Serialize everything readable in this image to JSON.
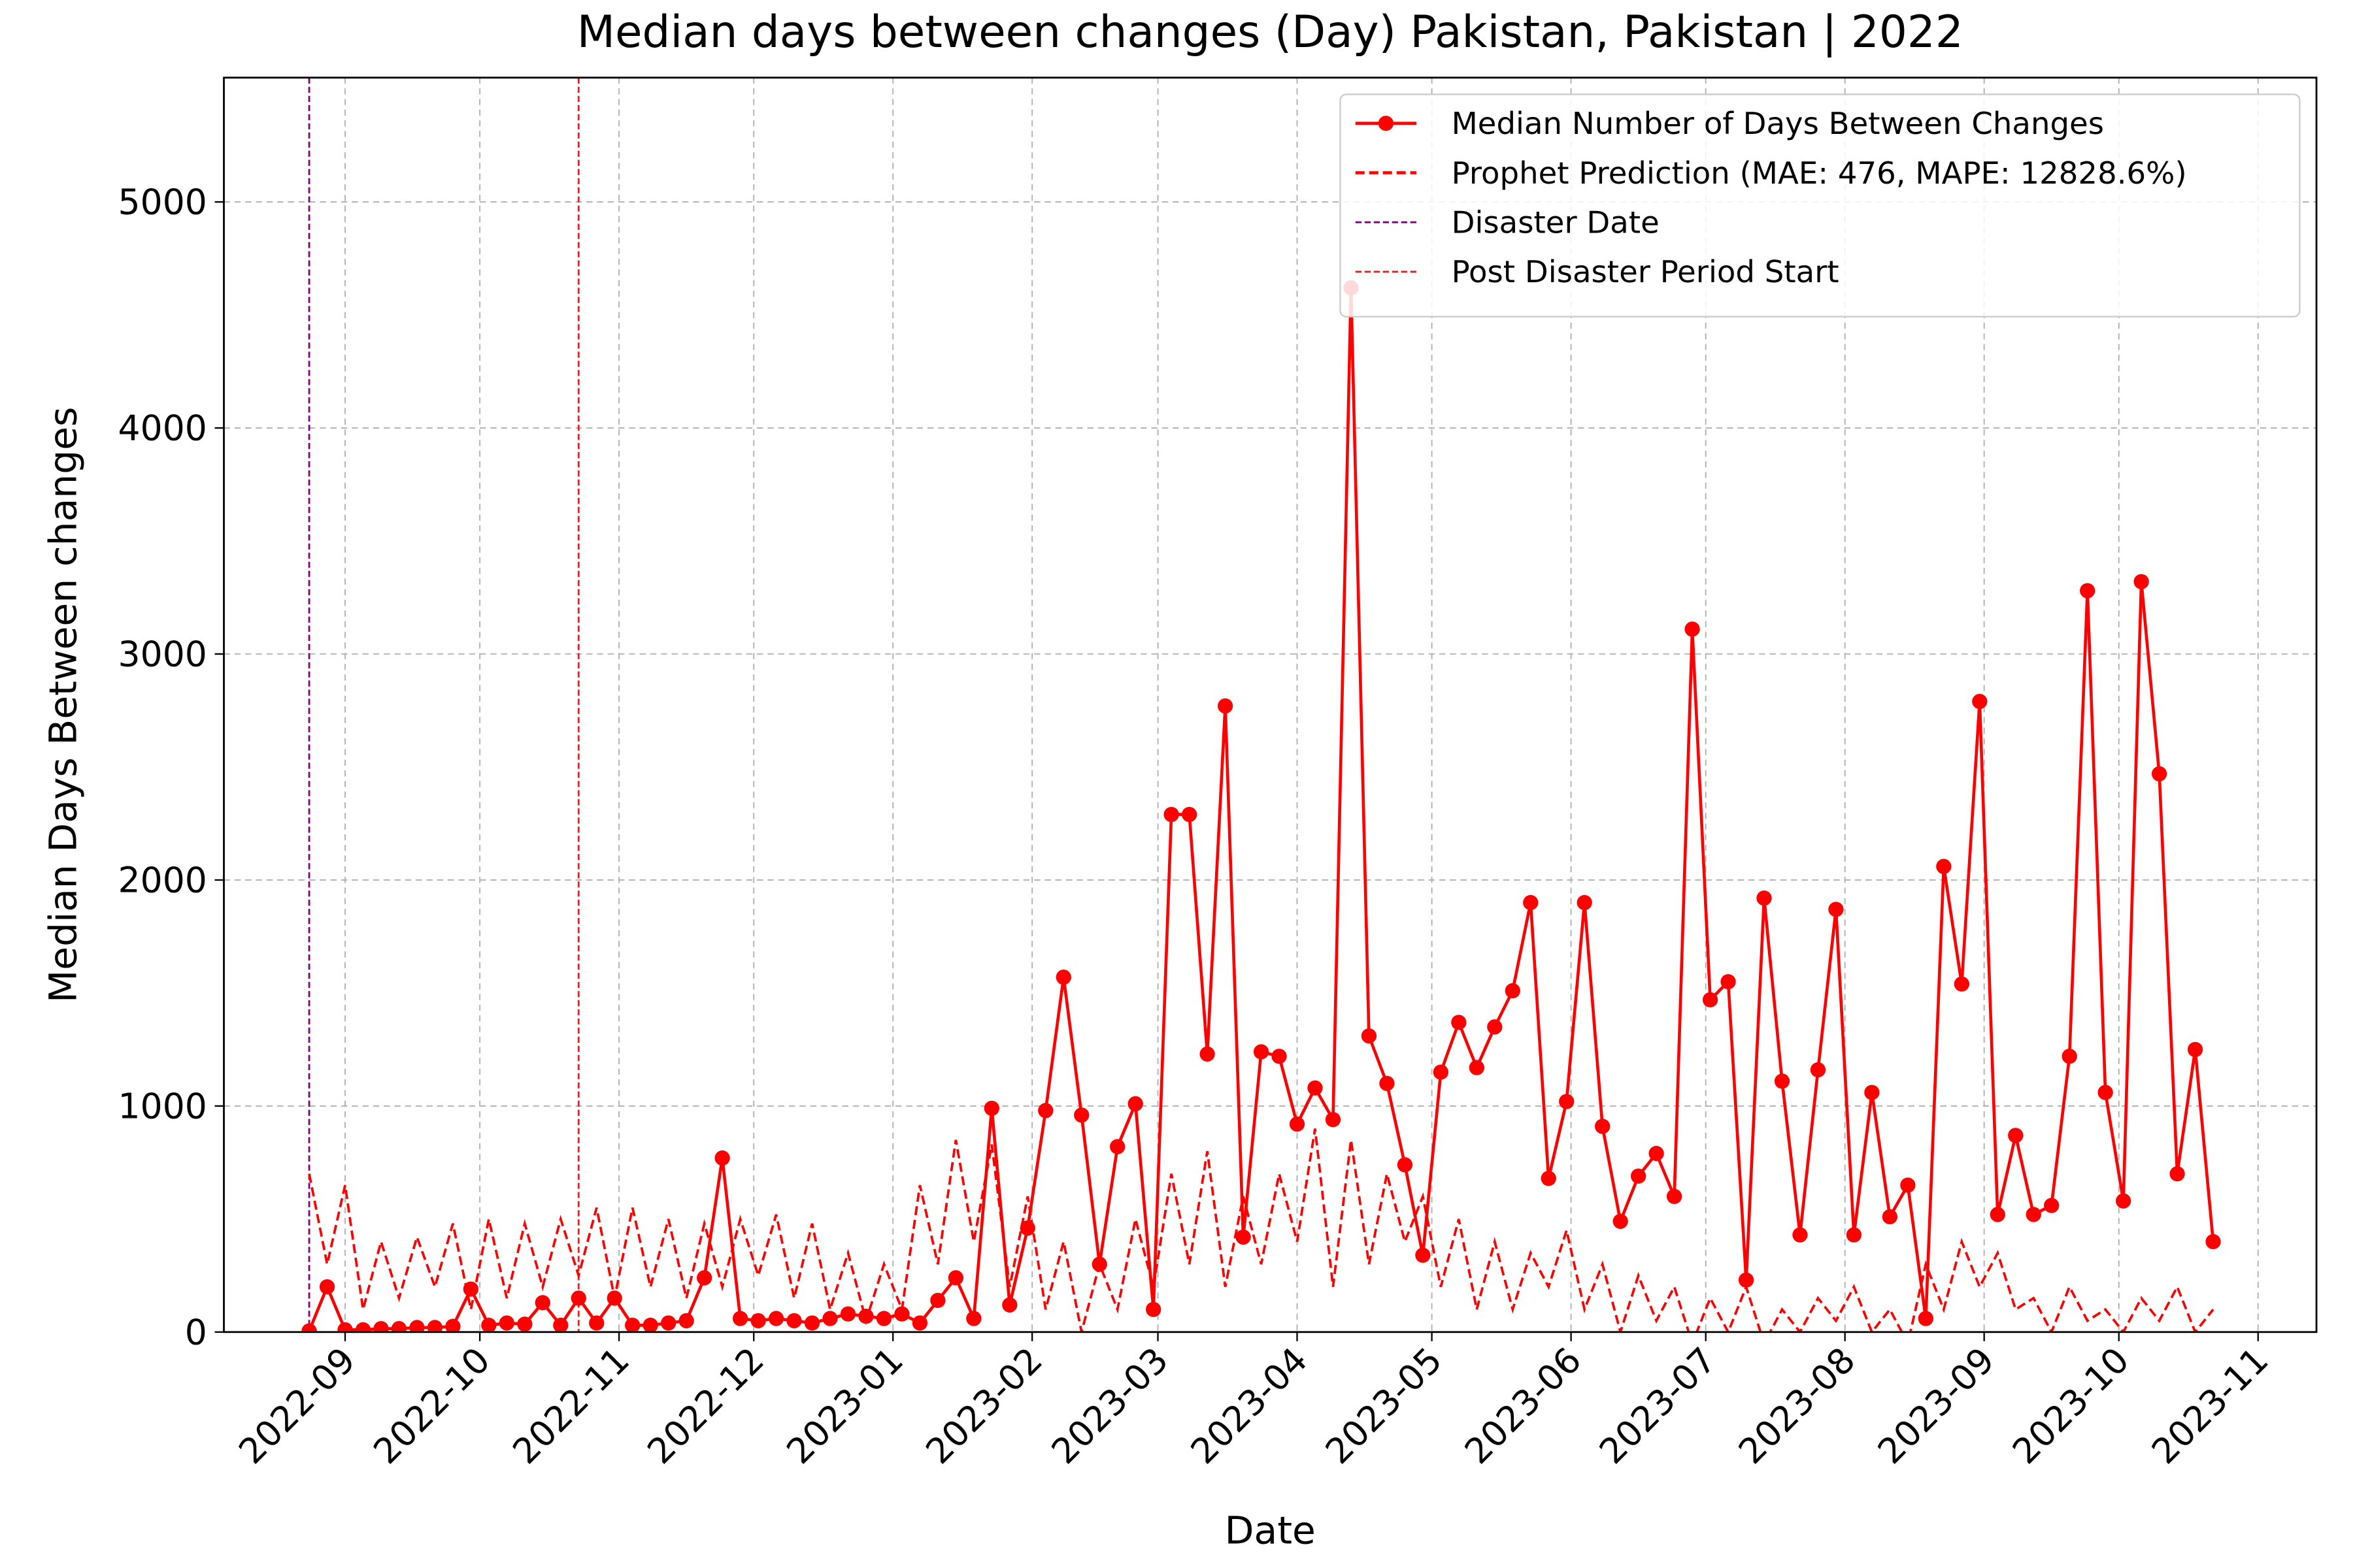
{
  "chart_data": {
    "type": "line",
    "title": "Median days between changes (Day) Pakistan, Pakistan | 2022",
    "xlabel": "Date",
    "ylabel": "Median Days Between changes",
    "x": [
      "2022-08-24",
      "2022-08-28",
      "2022-09-01",
      "2022-09-05",
      "2022-09-09",
      "2022-09-13",
      "2022-09-17",
      "2022-09-21",
      "2022-09-25",
      "2022-09-29",
      "2022-10-03",
      "2022-10-07",
      "2022-10-11",
      "2022-10-15",
      "2022-10-19",
      "2022-10-23",
      "2022-10-27",
      "2022-10-31",
      "2022-11-04",
      "2022-11-08",
      "2022-11-12",
      "2022-11-16",
      "2022-11-20",
      "2022-11-24",
      "2022-11-28",
      "2022-12-02",
      "2022-12-06",
      "2022-12-10",
      "2022-12-14",
      "2022-12-18",
      "2022-12-22",
      "2022-12-26",
      "2022-12-30",
      "2023-01-03",
      "2023-01-07",
      "2023-01-11",
      "2023-01-15",
      "2023-01-19",
      "2023-01-23",
      "2023-01-27",
      "2023-01-31",
      "2023-02-04",
      "2023-02-08",
      "2023-02-12",
      "2023-02-16",
      "2023-02-20",
      "2023-02-24",
      "2023-02-28",
      "2023-03-04",
      "2023-03-08",
      "2023-03-12",
      "2023-03-16",
      "2023-03-20",
      "2023-03-24",
      "2023-03-28",
      "2023-04-01",
      "2023-04-05",
      "2023-04-09",
      "2023-04-13",
      "2023-04-17",
      "2023-04-21",
      "2023-04-25",
      "2023-04-29",
      "2023-05-03",
      "2023-05-07",
      "2023-05-11",
      "2023-05-15",
      "2023-05-19",
      "2023-05-23",
      "2023-05-27",
      "2023-05-31",
      "2023-06-04",
      "2023-06-08",
      "2023-06-12",
      "2023-06-16",
      "2023-06-20",
      "2023-06-24",
      "2023-06-28",
      "2023-07-02",
      "2023-07-06",
      "2023-07-10",
      "2023-07-14",
      "2023-07-18",
      "2023-07-22",
      "2023-07-26",
      "2023-07-30",
      "2023-08-03",
      "2023-08-07",
      "2023-08-11",
      "2023-08-15",
      "2023-08-19",
      "2023-08-23",
      "2023-08-27",
      "2023-08-31",
      "2023-09-04",
      "2023-09-08",
      "2023-09-12",
      "2023-09-16",
      "2023-09-20",
      "2023-09-24",
      "2023-09-28",
      "2023-10-02",
      "2023-10-06",
      "2023-10-10",
      "2023-10-14",
      "2023-10-18",
      "2023-10-22"
    ],
    "series": [
      {
        "name": "Median Number of Days Between Changes",
        "color": "#ff0000",
        "style": "solid",
        "marker": true,
        "values": [
          5,
          200,
          10,
          10,
          15,
          15,
          20,
          20,
          25,
          190,
          30,
          40,
          35,
          130,
          30,
          150,
          40,
          150,
          30,
          30,
          40,
          50,
          240,
          770,
          60,
          50,
          60,
          50,
          40,
          60,
          80,
          70,
          60,
          80,
          40,
          140,
          240,
          60,
          990,
          120,
          460,
          980,
          1570,
          960,
          300,
          820,
          1010,
          100,
          2290,
          2290,
          1230,
          2770,
          420,
          1240,
          1220,
          920,
          1080,
          940,
          4620,
          1310,
          1100,
          740,
          340,
          1150,
          1370,
          1170,
          1350,
          1510,
          1900,
          680,
          1020,
          1900,
          910,
          490,
          690,
          790,
          600,
          3110,
          1470,
          1550,
          230,
          1920,
          1110,
          430,
          1160,
          1870,
          430,
          1060,
          510,
          650,
          60,
          2060,
          1540,
          2790,
          520,
          870,
          520,
          560,
          1220,
          3280,
          1060,
          580,
          3320,
          2470,
          700,
          1250,
          400
        ]
      },
      {
        "name": "Prophet Prediction (MAE: 476, MAPE: 12828.6%)",
        "color": "#ff0000",
        "style": "dashed",
        "marker": false,
        "values": [
          700,
          300,
          650,
          100,
          400,
          150,
          420,
          200,
          480,
          100,
          500,
          150,
          480,
          200,
          500,
          250,
          550,
          150,
          550,
          200,
          500,
          150,
          480,
          200,
          500,
          250,
          520,
          150,
          480,
          100,
          350,
          50,
          300,
          100,
          650,
          300,
          850,
          400,
          830,
          200,
          600,
          100,
          400,
          0,
          300,
          100,
          500,
          200,
          700,
          300,
          800,
          200,
          600,
          300,
          700,
          400,
          900,
          200,
          850,
          300,
          700,
          400,
          600,
          200,
          500,
          100,
          400,
          100,
          350,
          200,
          450,
          100,
          300,
          0,
          250,
          50,
          200,
          -50,
          150,
          0,
          200,
          -50,
          100,
          0,
          150,
          50,
          200,
          0,
          100,
          -50,
          300,
          100,
          400,
          200,
          350,
          100,
          150,
          0,
          200,
          50,
          100,
          0,
          150,
          50,
          200,
          0,
          100
        ]
      }
    ],
    "vlines": [
      {
        "name": "Disaster Date",
        "x": "2022-08-24",
        "color": "#800080"
      },
      {
        "name": "Post Disaster Period Start",
        "x": "2022-10-23",
        "color": "#d62728"
      }
    ],
    "xlim": [
      "2022-08-05",
      "2023-11-14"
    ],
    "xticks": [
      {
        "value": "2022-09-01",
        "label": "2022-09"
      },
      {
        "value": "2022-10-01",
        "label": "2022-10"
      },
      {
        "value": "2022-11-01",
        "label": "2022-11"
      },
      {
        "value": "2022-12-01",
        "label": "2022-12"
      },
      {
        "value": "2023-01-01",
        "label": "2023-01"
      },
      {
        "value": "2023-02-01",
        "label": "2023-02"
      },
      {
        "value": "2023-03-01",
        "label": "2023-03"
      },
      {
        "value": "2023-04-01",
        "label": "2023-04"
      },
      {
        "value": "2023-05-01",
        "label": "2023-05"
      },
      {
        "value": "2023-06-01",
        "label": "2023-06"
      },
      {
        "value": "2023-07-01",
        "label": "2023-07"
      },
      {
        "value": "2023-08-01",
        "label": "2023-08"
      },
      {
        "value": "2023-09-01",
        "label": "2023-09"
      },
      {
        "value": "2023-10-01",
        "label": "2023-10"
      },
      {
        "value": "2023-11-01",
        "label": "2023-11"
      }
    ],
    "ylim": [
      0,
      5550
    ],
    "yticks": [
      0,
      1000,
      2000,
      3000,
      4000,
      5000
    ],
    "grid": true,
    "legend": "upper right"
  }
}
